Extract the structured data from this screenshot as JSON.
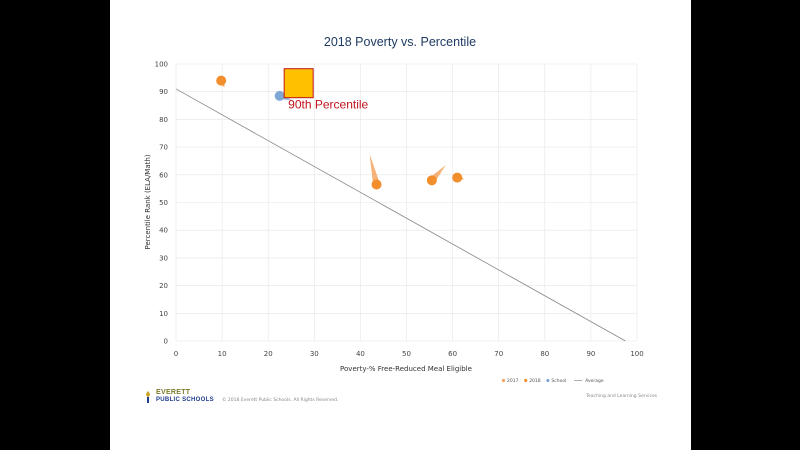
{
  "chart_data": {
    "type": "scatter",
    "title": "2018 Poverty vs. Percentile",
    "xlabel": "Poverty-% Free-Reduced Meal Eligible",
    "ylabel": "Percentile Rank (ELA/Math)",
    "xlim": [
      0,
      100
    ],
    "ylim": [
      0,
      100
    ],
    "xticks": [
      "0",
      "10",
      "20",
      "30",
      "40",
      "50",
      "60",
      "70",
      "80",
      "90",
      "100"
    ],
    "yticks": [
      "0",
      "10",
      "20",
      "30",
      "40",
      "50",
      "60",
      "70",
      "80",
      "90",
      "100"
    ],
    "grid": true,
    "legend_position": "bottom-right",
    "legend": [
      {
        "label": "2017",
        "color": "#f4a460"
      },
      {
        "label": "2018",
        "color": "#f28e2b"
      },
      {
        "label": "School",
        "color": "#7fa7d6"
      },
      {
        "label": "Average",
        "color": "#999999"
      }
    ],
    "average_line": {
      "x": [
        0,
        97.5
      ],
      "y": [
        91,
        0
      ]
    },
    "series": [
      {
        "name": "2018",
        "points": [
          {
            "x": 9.8,
            "y": 94.0
          },
          {
            "x": 43.5,
            "y": 56.5
          },
          {
            "x": 55.5,
            "y": 58.0
          },
          {
            "x": 61.0,
            "y": 59.0
          }
        ]
      },
      {
        "name": "School",
        "points": [
          {
            "x": 22.5,
            "y": 88.5
          }
        ]
      }
    ],
    "trails": [
      {
        "from": [
          10.5,
          91.5
        ],
        "to": [
          9.8,
          94.0
        ]
      },
      {
        "from": [
          42.0,
          67.5
        ],
        "to": [
          43.5,
          56.5
        ]
      },
      {
        "from": [
          58.5,
          63.5
        ],
        "to": [
          55.5,
          58.0
        ]
      },
      {
        "from": [
          62.5,
          58.5
        ],
        "to": [
          61.0,
          59.0
        ]
      },
      {
        "from": [
          25.0,
          87.0
        ],
        "to": [
          22.5,
          88.5
        ]
      }
    ],
    "annotation": {
      "text": "90th Percentile",
      "color": "#c0141b",
      "marker_color": "#ffc000",
      "x": 26.5,
      "y": 90
    }
  },
  "footer": {
    "logo_line1": "EVERETT",
    "logo_line2": "PUBLIC SCHOOLS",
    "copyright": "© 2018 Everett Public Schools. All Rights Reserved.",
    "right": "Teaching and Learning Services"
  },
  "colors": {
    "page_bg": "#000000",
    "slide_bg": "#ffffff",
    "title": "#1f3b63",
    "grid": "#e6e6e6",
    "average_line": "#888888"
  }
}
